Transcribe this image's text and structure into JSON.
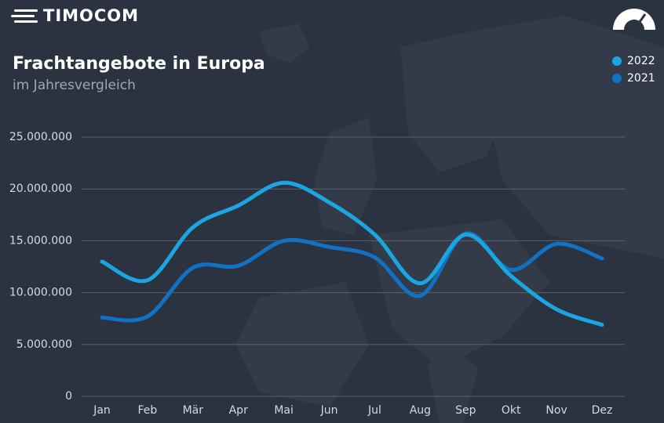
{
  "brand": "TIMOCOM",
  "chart_data": {
    "type": "line",
    "title": "Frachtangebote in Europa",
    "subtitle": "im Jahresvergleich",
    "categories": [
      "Jan",
      "Feb",
      "Mär",
      "Apr",
      "Mai",
      "Jun",
      "Jul",
      "Aug",
      "Sep",
      "Okt",
      "Nov",
      "Dez"
    ],
    "series": [
      {
        "name": "2022",
        "color": "#1ba6e2",
        "values": [
          13000000,
          11200000,
          16300000,
          18400000,
          20600000,
          18700000,
          15600000,
          10900000,
          15600000,
          11600000,
          8400000,
          6900000
        ]
      },
      {
        "name": "2021",
        "color": "#1172c4",
        "values": [
          7600000,
          7700000,
          12400000,
          12600000,
          15000000,
          14400000,
          13400000,
          9700000,
          15700000,
          12200000,
          14700000,
          13300000
        ]
      }
    ],
    "ylim": [
      0,
      25000000
    ],
    "yticks": [
      0,
      {
        "value": 5000000,
        "label": "5.000.000"
      },
      {
        "value": 10000000,
        "label": "10.000.000"
      },
      {
        "value": 15000000,
        "label": "15.000.000"
      },
      {
        "value": 20000000,
        "label": "20.000.000"
      },
      {
        "value": 25000000,
        "label": "25.000.000"
      }
    ],
    "grid": true,
    "legend": "top-right"
  }
}
